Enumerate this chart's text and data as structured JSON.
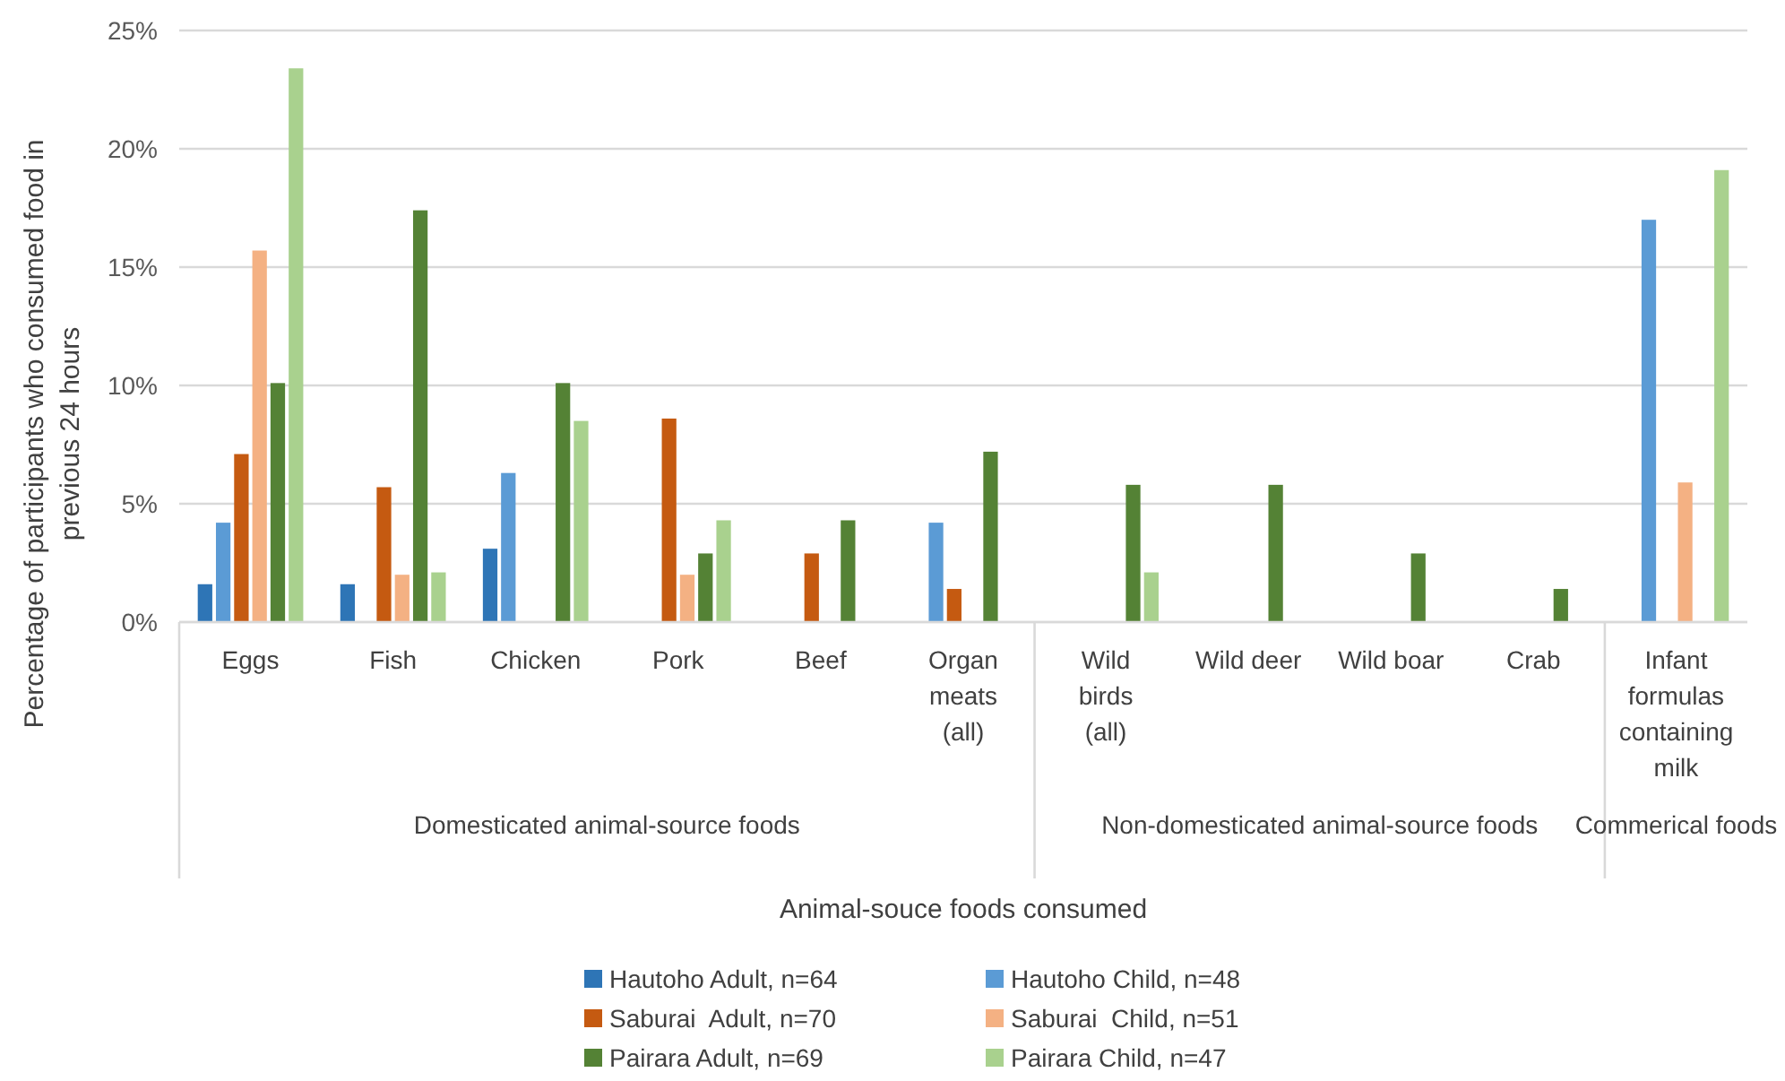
{
  "chart_data": {
    "type": "bar",
    "xlabel": "Animal-souce foods consumed",
    "ylabel": "Percentage of participants who consumed food in previous 24 hours",
    "categories": [
      "Eggs",
      "Fish",
      "Chicken",
      "Pork",
      "Beef",
      "Organ meats (all)",
      "Wild birds (all)",
      "Wild deer",
      "Wild boar",
      "Crab",
      "Infant formulas containing milk"
    ],
    "annotations": [
      "Domesticated animal-source foods",
      "Non-domesticated animal-source foods",
      "Commerical foods"
    ],
    "series": [
      {
        "name": "Hautoho Adult, n=64",
        "color": "#2e75b6",
        "values": [
          1.6,
          1.6,
          3.1,
          null,
          null,
          null,
          null,
          null,
          null,
          null,
          null
        ]
      },
      {
        "name": "Hautoho Child, n=48",
        "color": "#5b9bd5",
        "values": [
          4.2,
          null,
          6.3,
          null,
          null,
          4.2,
          null,
          null,
          null,
          null,
          17.0
        ]
      },
      {
        "name": "Saburai  Adult, n=70",
        "color": "#c55a11",
        "values": [
          7.1,
          5.7,
          null,
          8.6,
          2.9,
          1.4,
          null,
          null,
          null,
          null,
          null
        ]
      },
      {
        "name": "Saburai  Child, n=51",
        "color": "#f4b183",
        "values": [
          15.7,
          2.0,
          null,
          2.0,
          null,
          null,
          null,
          null,
          null,
          null,
          5.9
        ]
      },
      {
        "name": "Pairara Adult, n=69",
        "color": "#548235",
        "values": [
          10.1,
          17.4,
          10.1,
          2.9,
          4.3,
          7.2,
          5.8,
          5.8,
          2.9,
          1.4,
          null
        ]
      },
      {
        "name": "Pairara Child, n=47",
        "color": "#a9d18e",
        "values": [
          23.4,
          2.1,
          8.5,
          4.3,
          null,
          null,
          2.1,
          null,
          null,
          null,
          19.1
        ]
      }
    ],
    "ylim": [
      0,
      25
    ],
    "yticks": [
      {
        "value": 0,
        "label": "0%"
      },
      {
        "value": 5,
        "label": "5%"
      },
      {
        "value": 10,
        "label": "10%"
      },
      {
        "value": 15,
        "label": "15%"
      },
      {
        "value": 20,
        "label": "20%"
      },
      {
        "value": 25,
        "label": "25%"
      }
    ],
    "grid": "y",
    "legend": "bottom"
  }
}
